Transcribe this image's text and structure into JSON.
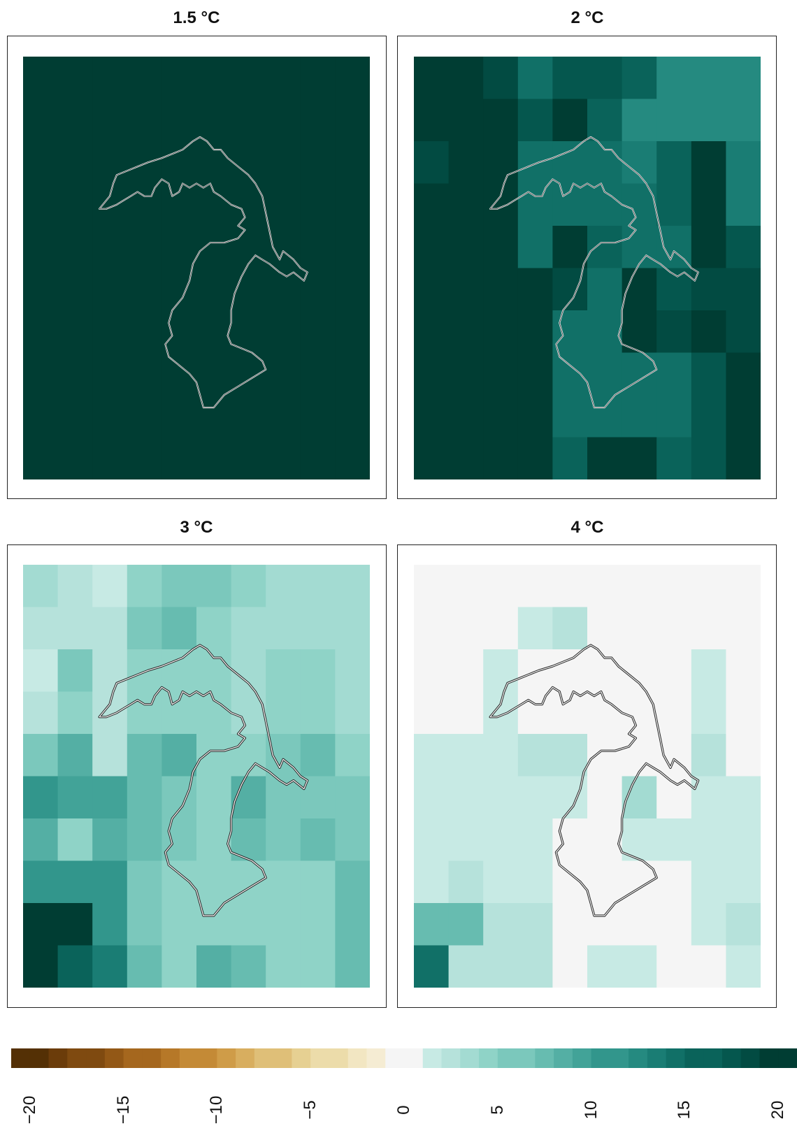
{
  "panels": [
    {
      "title": "1.5 °C"
    },
    {
      "title": "2 °C"
    },
    {
      "title": "3 °C"
    },
    {
      "title": "4 °C"
    }
  ],
  "colorbar": {
    "ticks": [
      "−20",
      "−15",
      "−10",
      "−5",
      "0",
      "5",
      "10",
      "15",
      "20"
    ],
    "min": -21,
    "max": 21,
    "colors_negative": [
      "#543005",
      "#6b3c0a",
      "#7f4a10",
      "#935816",
      "#a5671e",
      "#b67828",
      "#c48a36",
      "#cf9c48",
      "#d8ae5f",
      "#dfbf78",
      "#e6d092",
      "#ecdcaa",
      "#f2e6c2",
      "#f5ecd3"
    ],
    "colors_positive": [
      "#c7eae4",
      "#b6e2db",
      "#a3dbd2",
      "#8fd3c7",
      "#7bc8bc",
      "#67bcb0",
      "#54afa4",
      "#42a398",
      "#32968c",
      "#258a80",
      "#1a7d74",
      "#117067",
      "#0a635a",
      "#05574e",
      "#024b42",
      "#003d33"
    ],
    "zero_color": "#f5f5f5"
  },
  "chart_data": [
    {
      "type": "heatmap",
      "title": "1.5 °C",
      "ncols": 10,
      "nrows": 10,
      "values": [
        [
          19,
          19,
          19,
          17,
          19,
          19,
          18,
          16,
          16,
          16
        ],
        [
          19,
          19,
          19,
          19,
          19,
          18,
          16,
          16,
          16,
          16
        ],
        [
          19,
          19,
          19,
          18,
          18,
          18,
          17,
          19,
          19,
          17
        ],
        [
          19,
          19,
          19,
          18,
          18,
          18,
          18,
          19,
          19,
          17
        ],
        [
          19,
          19,
          19,
          19,
          19,
          19,
          18,
          19,
          19,
          19
        ],
        [
          19,
          19,
          19,
          19,
          19,
          19,
          18,
          19,
          19,
          19
        ],
        [
          19,
          19,
          19,
          19,
          18,
          18,
          19,
          19,
          19,
          19
        ],
        [
          19,
          19,
          19,
          19,
          18,
          18,
          18,
          18,
          19,
          19
        ],
        [
          19,
          19,
          19,
          19,
          18,
          18,
          18,
          18,
          19,
          19
        ],
        [
          19,
          19,
          19,
          19,
          19,
          19,
          19,
          18,
          19,
          19
        ]
      ]
    },
    {
      "type": "heatmap",
      "title": "2 °C",
      "ncols": 10,
      "nrows": 10,
      "values": [
        [
          17,
          16,
          15,
          12,
          14,
          14,
          13,
          10,
          10,
          10
        ],
        [
          17,
          17,
          16,
          14,
          18,
          13,
          10,
          10,
          10,
          10
        ],
        [
          15,
          19,
          16,
          12,
          12,
          12,
          11,
          13,
          17,
          11
        ],
        [
          17,
          19,
          16,
          12,
          12,
          12,
          12,
          13,
          17,
          11
        ],
        [
          18,
          19,
          17,
          12,
          19,
          13,
          12,
          12,
          17,
          14
        ],
        [
          19,
          19,
          19,
          17,
          15,
          12,
          20,
          14,
          15,
          15
        ],
        [
          19,
          18,
          19,
          17,
          12,
          12,
          17,
          15,
          17,
          15
        ],
        [
          19,
          19,
          19,
          16,
          12,
          12,
          12,
          12,
          14,
          17
        ],
        [
          19,
          19,
          19,
          17,
          12,
          12,
          12,
          12,
          14,
          17
        ],
        [
          19,
          19,
          19,
          17,
          13,
          19,
          18,
          13,
          14,
          17
        ]
      ]
    },
    {
      "type": "heatmap",
      "title": "3 °C",
      "ncols": 10,
      "nrows": 10,
      "values": [
        [
          3,
          2,
          1,
          4,
          5,
          5,
          4,
          3,
          3,
          3
        ],
        [
          2,
          2,
          2,
          5,
          6,
          4,
          3,
          3,
          3,
          3
        ],
        [
          1,
          5,
          2,
          4,
          4,
          4,
          3,
          4,
          4,
          3
        ],
        [
          2,
          4,
          2,
          4,
          4,
          4,
          3,
          4,
          4,
          3
        ],
        [
          5,
          7,
          2,
          6,
          7,
          4,
          4,
          5,
          6,
          4
        ],
        [
          9,
          8,
          8,
          6,
          5,
          4,
          7,
          5,
          5,
          5
        ],
        [
          7,
          4,
          7,
          6,
          5,
          4,
          6,
          5,
          6,
          5
        ],
        [
          9,
          9,
          9,
          5,
          4,
          4,
          4,
          4,
          4,
          6
        ],
        [
          19,
          19,
          9,
          5,
          4,
          4,
          4,
          4,
          4,
          6
        ],
        [
          19,
          13,
          11,
          6,
          4,
          7,
          6,
          4,
          4,
          6
        ]
      ]
    },
    {
      "type": "heatmap",
      "title": "4 °C",
      "ncols": 10,
      "nrows": 10,
      "values": [
        [
          0,
          0,
          0,
          0,
          0,
          0,
          0,
          0,
          0,
          0
        ],
        [
          0,
          0,
          0,
          1,
          2,
          0,
          0,
          0,
          0,
          0
        ],
        [
          0,
          0,
          1,
          0,
          0,
          0,
          0,
          0,
          1,
          0
        ],
        [
          0,
          0,
          1,
          0,
          0,
          0,
          0,
          0,
          1,
          0
        ],
        [
          1,
          1,
          1,
          2,
          2,
          0,
          0,
          0,
          2,
          0
        ],
        [
          1,
          1,
          1,
          1,
          1,
          0,
          3,
          0,
          1,
          1
        ],
        [
          1,
          1,
          1,
          1,
          0,
          0,
          1,
          1,
          1,
          1
        ],
        [
          1,
          2,
          1,
          1,
          0,
          0,
          0,
          0,
          1,
          1
        ],
        [
          6,
          6,
          2,
          2,
          0,
          0,
          0,
          0,
          1,
          2
        ],
        [
          12,
          2,
          2,
          2,
          0,
          1,
          1,
          0,
          0,
          1
        ]
      ]
    }
  ]
}
